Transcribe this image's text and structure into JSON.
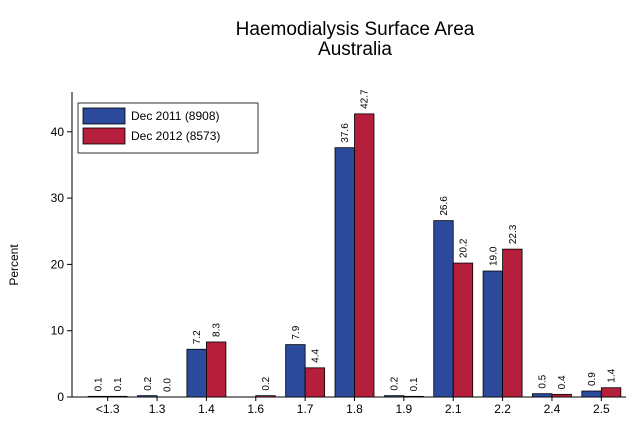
{
  "chart_data": {
    "type": "bar",
    "title": "Haemodialysis Surface Area",
    "subtitle": "Australia",
    "y_label": "Percent",
    "categories": [
      "<1.3",
      "1.3",
      "1.4",
      "1.6",
      "1.7",
      "1.8",
      "1.9",
      "2.1",
      "2.2",
      "2.4",
      "2.5"
    ],
    "series": [
      {
        "name": "Dec 2011 (8908)",
        "color": "#2b4a9b",
        "values": [
          0.1,
          0.2,
          7.2,
          null,
          7.9,
          37.6,
          0.2,
          26.6,
          19.0,
          0.5,
          0.9
        ],
        "value_labels": [
          "0.1",
          "0.2",
          "7.2",
          null,
          "7.9",
          "37.6",
          "0.2",
          "26.6",
          "19.0",
          "0.5",
          "0.9"
        ]
      },
      {
        "name": "Dec 2012 (8573)",
        "color": "#b51f3b",
        "values": [
          0.1,
          0.0,
          8.3,
          0.2,
          4.4,
          42.7,
          0.1,
          20.2,
          22.3,
          0.4,
          1.4
        ],
        "value_labels": [
          "0.1",
          "0.0",
          "8.3",
          "0.2",
          "4.4",
          "42.7",
          "0.1",
          "20.2",
          "22.3",
          "0.4",
          "1.4"
        ]
      }
    ],
    "ylim": [
      0,
      46
    ],
    "yticks": [
      0,
      10,
      20,
      30,
      40
    ],
    "grid": false,
    "legend": "top-left"
  }
}
